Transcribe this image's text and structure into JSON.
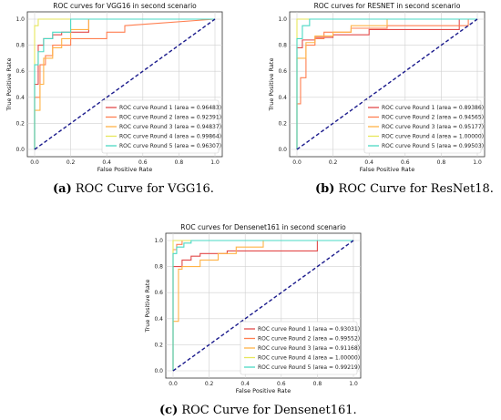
{
  "chart_data": [
    {
      "type": "line",
      "title": "ROC curves for VGG16 in second scenario",
      "xlabel": "False Positive Rate",
      "ylabel": "True Positive Rate",
      "xlim": [
        0,
        1
      ],
      "ylim": [
        0,
        1
      ],
      "xticks": [
        "0.0",
        "0.2",
        "0.4",
        "0.6",
        "0.8",
        "1.0"
      ],
      "yticks": [
        "0.0",
        "0.2",
        "0.4",
        "0.6",
        "0.8",
        "1.0"
      ],
      "grid": true,
      "legend_position": "lower-right",
      "caption": {
        "label": "(a)",
        "text": " ROC Curve for VGG16."
      },
      "series": [
        {
          "name": "ROC curve Round 1 (area = 0.96483)",
          "color": "#e24a4a",
          "x": [
            0,
            0,
            0.02,
            0.02,
            0.05,
            0.05,
            0.1,
            0.1,
            0.15,
            0.15,
            0.3,
            0.3,
            1
          ],
          "y": [
            0,
            0.5,
            0.5,
            0.8,
            0.8,
            0.85,
            0.85,
            0.88,
            0.88,
            0.9,
            0.9,
            1,
            1
          ]
        },
        {
          "name": "ROC curve Round 2 (area = 0.92391)",
          "color": "#ff7f50",
          "x": [
            0,
            0,
            0.03,
            0.03,
            0.06,
            0.06,
            0.1,
            0.1,
            0.2,
            0.2,
            0.4,
            0.4,
            0.5,
            0.5,
            1
          ],
          "y": [
            0,
            0.4,
            0.4,
            0.65,
            0.65,
            0.72,
            0.72,
            0.8,
            0.8,
            0.85,
            0.85,
            0.9,
            0.9,
            0.95,
            1
          ]
        },
        {
          "name": "ROC curve Round 3 (area = 0.94837)",
          "color": "#ffb347",
          "x": [
            0,
            0,
            0.03,
            0.03,
            0.05,
            0.05,
            0.1,
            0.1,
            0.15,
            0.15,
            0.2,
            0.2,
            0.3,
            0.3,
            1
          ],
          "y": [
            0,
            0.3,
            0.3,
            0.5,
            0.5,
            0.7,
            0.7,
            0.78,
            0.78,
            0.85,
            0.85,
            0.92,
            0.92,
            1,
            1
          ]
        },
        {
          "name": "ROC curve Round 4 (area = 0.99864)",
          "color": "#e6e65c",
          "x": [
            0,
            0,
            0.02,
            0.02,
            1
          ],
          "y": [
            0,
            0.95,
            0.95,
            1,
            1
          ]
        },
        {
          "name": "ROC curve Round 5 (area = 0.96307)",
          "color": "#4ad9c4",
          "x": [
            0,
            0,
            0.02,
            0.02,
            0.05,
            0.05,
            0.1,
            0.1,
            0.2,
            0.2,
            1
          ],
          "y": [
            0,
            0.65,
            0.65,
            0.75,
            0.75,
            0.85,
            0.85,
            0.9,
            0.9,
            1,
            1
          ]
        }
      ]
    },
    {
      "type": "line",
      "title": "ROC curves for RESNET in second scenario",
      "xlabel": "False Positive Rate",
      "ylabel": "True Positive Rate",
      "xlim": [
        0,
        1
      ],
      "ylim": [
        0,
        1
      ],
      "xticks": [
        "0.0",
        "0.2",
        "0.4",
        "0.6",
        "0.8",
        "1.0"
      ],
      "yticks": [
        "0.0",
        "0.2",
        "0.4",
        "0.6",
        "0.8",
        "1.0"
      ],
      "grid": true,
      "legend_position": "lower-right",
      "caption": {
        "label": "(b)",
        "text": " ROC Curve for ResNet18."
      },
      "series": [
        {
          "name": "ROC curve Round 1 (area = 0.89386)",
          "color": "#e24a4a",
          "x": [
            0,
            0,
            0.03,
            0.03,
            0.1,
            0.1,
            0.2,
            0.2,
            0.4,
            0.4,
            0.9,
            0.9,
            1
          ],
          "y": [
            0,
            0.78,
            0.78,
            0.84,
            0.84,
            0.86,
            0.86,
            0.88,
            0.88,
            0.92,
            0.92,
            1,
            1
          ]
        },
        {
          "name": "ROC curve Round 2 (area = 0.94565)",
          "color": "#ff7f50",
          "x": [
            0,
            0,
            0.02,
            0.02,
            0.05,
            0.05,
            0.1,
            0.1,
            0.15,
            0.15,
            0.3,
            0.3,
            0.5,
            0.5,
            0.95,
            0.95,
            1
          ],
          "y": [
            0,
            0.35,
            0.35,
            0.55,
            0.55,
            0.8,
            0.8,
            0.85,
            0.85,
            0.9,
            0.9,
            0.93,
            0.93,
            0.95,
            0.95,
            1,
            1
          ]
        },
        {
          "name": "ROC curve Round 3 (area = 0.95177)",
          "color": "#ffb347",
          "x": [
            0,
            0,
            0.05,
            0.05,
            0.1,
            0.1,
            0.2,
            0.2,
            0.3,
            0.3,
            0.5,
            0.5,
            1
          ],
          "y": [
            0,
            0.7,
            0.7,
            0.82,
            0.82,
            0.87,
            0.87,
            0.9,
            0.9,
            0.95,
            0.95,
            1,
            1
          ]
        },
        {
          "name": "ROC curve Round 4 (area = 1.00000)",
          "color": "#e6e65c",
          "x": [
            0,
            0,
            1
          ],
          "y": [
            0,
            1,
            1
          ]
        },
        {
          "name": "ROC curve Round 5 (area = 0.99503)",
          "color": "#4ad9c4",
          "x": [
            0,
            0,
            0.03,
            0.03,
            0.07,
            0.07,
            1
          ],
          "y": [
            0,
            0.85,
            0.85,
            0.95,
            0.95,
            1,
            1
          ]
        }
      ]
    },
    {
      "type": "line",
      "title": "ROC curves for Densenet161 in second scenario",
      "xlabel": "False Positive Rate",
      "ylabel": "True Positive Rate",
      "xlim": [
        0,
        1
      ],
      "ylim": [
        0,
        1
      ],
      "xticks": [
        "0.0",
        "0.2",
        "0.4",
        "0.6",
        "0.8",
        "1.0"
      ],
      "yticks": [
        "0.0",
        "0.2",
        "0.4",
        "0.6",
        "0.8",
        "1.0"
      ],
      "grid": true,
      "legend_position": "lower-right",
      "caption": {
        "label": "(c)",
        "text": " ROC Curve for Densenet161."
      },
      "series": [
        {
          "name": "ROC curve Round 1 (area = 0.93031)",
          "color": "#e24a4a",
          "x": [
            0,
            0,
            0.05,
            0.05,
            0.1,
            0.1,
            0.15,
            0.15,
            0.3,
            0.3,
            0.8,
            0.8,
            1
          ],
          "y": [
            0,
            0.8,
            0.8,
            0.85,
            0.85,
            0.88,
            0.88,
            0.9,
            0.9,
            0.92,
            0.92,
            1,
            1
          ]
        },
        {
          "name": "ROC curve Round 2 (area = 0.99552)",
          "color": "#ff7f50",
          "x": [
            0,
            0,
            0.02,
            0.02,
            0.05,
            0.05,
            1
          ],
          "y": [
            0,
            0.93,
            0.93,
            0.97,
            0.97,
            1,
            1
          ]
        },
        {
          "name": "ROC curve Round 3 (area = 0.91168)",
          "color": "#ffb347",
          "x": [
            0,
            0,
            0.03,
            0.03,
            0.05,
            0.05,
            0.15,
            0.15,
            0.25,
            0.25,
            0.35,
            0.35,
            0.5,
            0.5,
            1
          ],
          "y": [
            0,
            0.38,
            0.38,
            0.78,
            0.78,
            0.8,
            0.8,
            0.85,
            0.85,
            0.9,
            0.9,
            0.95,
            0.95,
            1,
            1
          ]
        },
        {
          "name": "ROC curve Round 4 (area = 1.00000)",
          "color": "#e6e65c",
          "x": [
            0,
            0,
            1
          ],
          "y": [
            0,
            1,
            1
          ]
        },
        {
          "name": "ROC curve Round 5 (area = 0.99219)",
          "color": "#4ad9c4",
          "x": [
            0,
            0,
            0.02,
            0.02,
            0.06,
            0.06,
            0.1,
            0.1,
            1
          ],
          "y": [
            0,
            0.9,
            0.9,
            0.95,
            0.95,
            0.98,
            0.98,
            1,
            1
          ]
        }
      ]
    }
  ]
}
